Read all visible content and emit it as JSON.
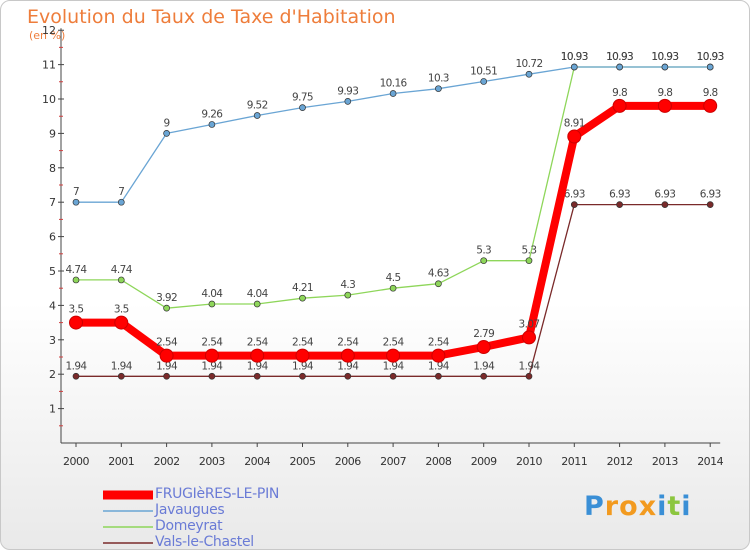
{
  "title": "Evolution du Taux de Taxe d'Habitation",
  "subtitle": "(en %)",
  "logo": {
    "letters": [
      {
        "char": "P",
        "color": "#3a8fd6"
      },
      {
        "char": "r",
        "color": "#f29a1f"
      },
      {
        "char": "o",
        "color": "#f29a1f"
      },
      {
        "char": "x",
        "color": "#f29a1f"
      },
      {
        "char": "i",
        "color": "#3a8fd6"
      },
      {
        "char": "t",
        "color": "#8cc63f"
      },
      {
        "char": "i",
        "color": "#3a8fd6"
      }
    ]
  },
  "chart_data": {
    "type": "line",
    "title": "Evolution du Taux de Taxe d'Habitation",
    "ylabel": "(en %)",
    "xlabel": "",
    "x": [
      "2000",
      "2001",
      "2002",
      "2003",
      "2004",
      "2005",
      "2006",
      "2007",
      "2008",
      "2009",
      "2010",
      "2011",
      "2012",
      "2013",
      "2014"
    ],
    "ylim": [
      0,
      12
    ],
    "yticks": [
      1,
      2,
      3,
      4,
      5,
      6,
      7,
      8,
      9,
      10,
      11,
      12
    ],
    "grid": false,
    "legend_position": "bottom-left",
    "series": [
      {
        "name": "FRUGIèRES-LE-PIN",
        "color": "#ff0000",
        "emphasis": true,
        "values": [
          3.5,
          3.5,
          2.54,
          2.54,
          2.54,
          2.54,
          2.54,
          2.54,
          2.54,
          2.79,
          3.07,
          8.91,
          9.8,
          9.8,
          9.8
        ],
        "labels": [
          "3.5",
          "3.5",
          "2.54",
          "2.54",
          "2.54",
          "2.54",
          "2.54",
          "2.54",
          "2.54",
          "2.79",
          "3.07",
          "8.91",
          "9.8",
          "9.8",
          "9.8"
        ]
      },
      {
        "name": "Javaugues",
        "color": "#6aa5d4",
        "values": [
          7,
          7,
          9,
          9.26,
          9.52,
          9.75,
          9.93,
          10.16,
          10.3,
          10.51,
          10.72,
          10.93,
          10.93,
          10.93,
          10.93
        ],
        "labels": [
          "7",
          "7",
          "9",
          "9.26",
          "9.52",
          "9.75",
          "9.93",
          "10.16",
          "10.3",
          "10.51",
          "10.72",
          "10.93",
          "10.93",
          "10.93",
          "10.93"
        ]
      },
      {
        "name": "Domeyrat",
        "color": "#8ed65a",
        "values": [
          4.74,
          4.74,
          3.92,
          4.04,
          4.04,
          4.21,
          4.3,
          4.5,
          4.63,
          5.3,
          5.3,
          10.93,
          10.93,
          10.93,
          10.93
        ],
        "labels": [
          "4.74",
          "4.74",
          "3.92",
          "4.04",
          "4.04",
          "4.21",
          "4.3",
          "4.5",
          "4.63",
          "5.3",
          "5.3",
          "10.93",
          "10.93",
          "10.93",
          "10.93"
        ]
      },
      {
        "name": "Vals-le-Chastel",
        "color": "#7a2a2a",
        "values": [
          1.94,
          1.94,
          1.94,
          1.94,
          1.94,
          1.94,
          1.94,
          1.94,
          1.94,
          1.94,
          1.94,
          6.93,
          6.93,
          6.93,
          6.93
        ],
        "labels": [
          "1.94",
          "1.94",
          "1.94",
          "1.94",
          "1.94",
          "1.94",
          "1.94",
          "1.94",
          "1.94",
          "1.94",
          "1.94",
          "6.93",
          "6.93",
          "6.93",
          "6.93"
        ]
      }
    ]
  }
}
